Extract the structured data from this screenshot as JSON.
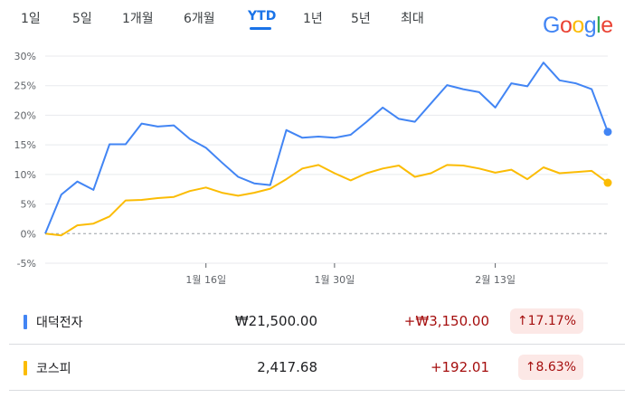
{
  "tabs": [
    {
      "label": "1일"
    },
    {
      "label": "5일"
    },
    {
      "label": "1개월"
    },
    {
      "label": "6개월"
    },
    {
      "label": "YTD",
      "active": true
    },
    {
      "label": "1년"
    },
    {
      "label": "5년"
    },
    {
      "label": "최대"
    }
  ],
  "logo": {
    "text": "Google",
    "colors": [
      "#4285F4",
      "#EA4335",
      "#FBBC05",
      "#4285F4",
      "#34A853",
      "#EA4335"
    ]
  },
  "chart_data": {
    "type": "line",
    "ylim": [
      -5,
      30
    ],
    "yticks": [
      "30%",
      "25%",
      "20%",
      "15%",
      "10%",
      "5%",
      "0%",
      "-5%"
    ],
    "ytick_values": [
      30,
      25,
      20,
      15,
      10,
      5,
      0,
      -5
    ],
    "x_labels": [
      {
        "label": "1월 16일",
        "index": 10
      },
      {
        "label": "1월 30일",
        "index": 18
      },
      {
        "label": "2월 13일",
        "index": 28
      }
    ],
    "grid": true,
    "series": [
      {
        "name": "대덕전자",
        "color": "#4285f4",
        "values": [
          0,
          6.6,
          8.8,
          7.4,
          15.1,
          15.1,
          18.6,
          18.1,
          18.3,
          16.0,
          14.5,
          12.0,
          9.6,
          8.5,
          8.2,
          17.5,
          16.2,
          16.4,
          16.2,
          16.7,
          18.9,
          21.3,
          19.4,
          18.9,
          22.0,
          25.1,
          24.4,
          23.9,
          21.3,
          25.4,
          24.9,
          28.9,
          25.9,
          25.4,
          24.4,
          17.2
        ]
      },
      {
        "name": "코스피",
        "color": "#fbbc04",
        "values": [
          0,
          -0.3,
          1.4,
          1.7,
          2.9,
          5.6,
          5.7,
          6.0,
          6.2,
          7.2,
          7.8,
          6.9,
          6.4,
          6.9,
          7.6,
          9.2,
          11.0,
          11.6,
          10.2,
          9.0,
          10.2,
          11.0,
          11.5,
          9.6,
          10.2,
          11.6,
          11.5,
          11.0,
          10.3,
          10.8,
          9.2,
          11.2,
          10.2,
          10.4,
          10.6,
          8.6
        ]
      }
    ]
  },
  "stocks": [
    {
      "name": "대덕전자",
      "price": "₩21,500.00",
      "change": "+₩3,150.00",
      "pct": "17.17%",
      "color": "#4285f4"
    },
    {
      "name": "코스피",
      "price": "2,417.68",
      "change": "+192.01",
      "pct": "8.63%",
      "color": "#fbbc04"
    }
  ],
  "icons": {
    "up_arrow": "up-arrow-icon"
  }
}
